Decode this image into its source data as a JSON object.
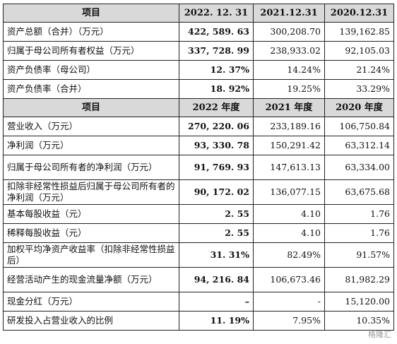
{
  "balance_header": [
    "项目",
    "2022. 12. 31",
    "2021.12.31",
    "2020.12.31"
  ],
  "balance_rows": [
    {
      "label": "资产总额（合并）（万元）",
      "v": [
        "422, 589. 63",
        "300,208.70",
        "139,162.85"
      ],
      "tall": false
    },
    {
      "label": "归属于母公司所有者权益（万元）",
      "v": [
        "337, 728. 99",
        "238,933.02",
        "92,105.03"
      ],
      "tall": false
    },
    {
      "label": "资产负债率（母公司）",
      "v": [
        "12. 37%",
        "14.24%",
        "21.24%"
      ],
      "tall": false
    },
    {
      "label": "资产负债率（合并）",
      "v": [
        "18. 92%",
        "19.25%",
        "33.29%"
      ],
      "tall": false
    }
  ],
  "income_header": [
    "项目",
    "2022 年度",
    "2021 年度",
    "2020 年度"
  ],
  "income_rows": [
    {
      "label": "营业收入（万元）",
      "v": [
        "270, 220. 06",
        "233,189.16",
        "106,750.84"
      ],
      "tall": false
    },
    {
      "label": "净利润（万元）",
      "v": [
        "93, 330. 78",
        "150,291.42",
        "63,312.14"
      ],
      "tall": false
    },
    {
      "label": "归属于母公司所有者的净利润（万元）",
      "v": [
        "91, 769. 93",
        "147,613.13",
        "63,334.00"
      ],
      "tall": true
    },
    {
      "label": "扣除非经常性损益后归属于母公司所有者的净利润（万元）",
      "v": [
        "90, 172. 02",
        "136,077.15",
        "63,675.68"
      ],
      "tall": true
    },
    {
      "label": "基本每股收益（元）",
      "v": [
        "2. 55",
        "4.10",
        "1.76"
      ],
      "tall": false
    },
    {
      "label": "稀释每股收益（元）",
      "v": [
        "2. 55",
        "4.10",
        "1.76"
      ],
      "tall": false
    },
    {
      "label": "加权平均净资产收益率（扣除非经常性损益后）",
      "v": [
        "31. 31%",
        "82.49%",
        "91.57%"
      ],
      "tall": true
    },
    {
      "label": "经营活动产生的现金流量净额（万元）",
      "v": [
        "94, 216. 84",
        "106,673.46",
        "81,982.29"
      ],
      "tall": true
    },
    {
      "label": "现金分红（万元）",
      "v": [
        "–",
        "-",
        "15,120.00"
      ],
      "tall": false
    },
    {
      "label": "研发投入占营业收入的比例",
      "v": [
        "11. 19%",
        "7.95%",
        "10.35%"
      ],
      "tall": false
    }
  ],
  "watermark": "格隆汇"
}
